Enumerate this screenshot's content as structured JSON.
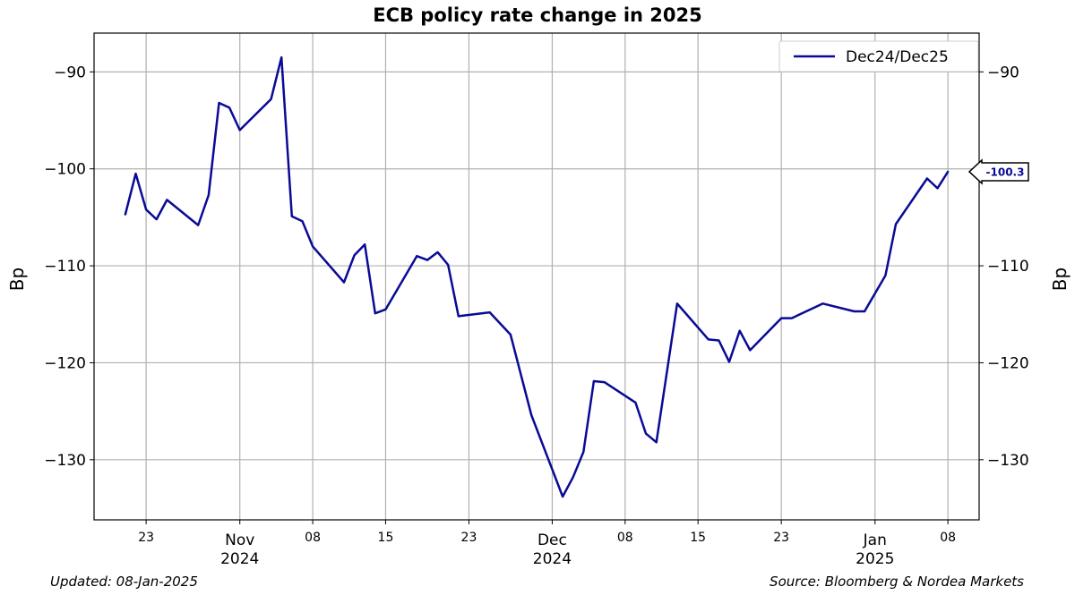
{
  "chart_data": {
    "type": "line",
    "title": "ECB policy rate change in 2025",
    "ylabel_left": "Bp",
    "ylabel_right": "Bp",
    "ylim": [
      -136.2,
      -86
    ],
    "y_ticks": [
      -90,
      -100,
      -110,
      -120,
      -130
    ],
    "y_tick_labels": [
      "−90",
      "−100",
      "−110",
      "−120",
      "−130"
    ],
    "xlim": [
      "2024-10-18",
      "2025-01-11"
    ],
    "x_ticks": [
      {
        "date": "2024-10-23",
        "label": "23",
        "sub": ""
      },
      {
        "date": "2024-11-01",
        "label": "Nov",
        "sub": "2024"
      },
      {
        "date": "2024-11-08",
        "label": "08",
        "sub": ""
      },
      {
        "date": "2024-11-15",
        "label": "15",
        "sub": ""
      },
      {
        "date": "2024-11-23",
        "label": "23",
        "sub": ""
      },
      {
        "date": "2024-12-01",
        "label": "Dec",
        "sub": "2024"
      },
      {
        "date": "2024-12-08",
        "label": "08",
        "sub": ""
      },
      {
        "date": "2024-12-15",
        "label": "15",
        "sub": ""
      },
      {
        "date": "2024-12-23",
        "label": "23",
        "sub": ""
      },
      {
        "date": "2025-01-01",
        "label": "Jan",
        "sub": "2025"
      },
      {
        "date": "2025-01-08",
        "label": "08",
        "sub": ""
      }
    ],
    "grid": true,
    "legend_position": "top-right",
    "series": [
      {
        "name": "Dec24/Dec25",
        "color": "#0a0a96",
        "points": [
          [
            "2024-10-21",
            -104.7
          ],
          [
            "2024-10-22",
            -100.5
          ],
          [
            "2024-10-23",
            -104.2
          ],
          [
            "2024-10-24",
            -105.2
          ],
          [
            "2024-10-25",
            -103.2
          ],
          [
            "2024-10-28",
            -105.8
          ],
          [
            "2024-10-29",
            -102.7
          ],
          [
            "2024-10-30",
            -93.2
          ],
          [
            "2024-10-31",
            -93.7
          ],
          [
            "2024-11-01",
            -96.0
          ],
          [
            "2024-11-04",
            -92.8
          ],
          [
            "2024-11-05",
            -88.5
          ],
          [
            "2024-11-06",
            -104.9
          ],
          [
            "2024-11-07",
            -105.4
          ],
          [
            "2024-11-08",
            -108.0
          ],
          [
            "2024-11-11",
            -111.7
          ],
          [
            "2024-11-12",
            -108.9
          ],
          [
            "2024-11-13",
            -107.8
          ],
          [
            "2024-11-14",
            -114.9
          ],
          [
            "2024-11-15",
            -114.5
          ],
          [
            "2024-11-18",
            -109.0
          ],
          [
            "2024-11-19",
            -109.4
          ],
          [
            "2024-11-20",
            -108.6
          ],
          [
            "2024-11-21",
            -109.9
          ],
          [
            "2024-11-22",
            -115.2
          ],
          [
            "2024-11-25",
            -114.8
          ],
          [
            "2024-11-27",
            -117.1
          ],
          [
            "2024-11-29",
            -125.4
          ],
          [
            "2024-12-02",
            -133.8
          ],
          [
            "2024-12-03",
            -131.8
          ],
          [
            "2024-12-04",
            -129.2
          ],
          [
            "2024-12-05",
            -121.9
          ],
          [
            "2024-12-06",
            -122.0
          ],
          [
            "2024-12-09",
            -124.1
          ],
          [
            "2024-12-10",
            -127.3
          ],
          [
            "2024-12-11",
            -128.2
          ],
          [
            "2024-12-13",
            -113.9
          ],
          [
            "2024-12-16",
            -117.6
          ],
          [
            "2024-12-17",
            -117.7
          ],
          [
            "2024-12-18",
            -119.9
          ],
          [
            "2024-12-19",
            -116.7
          ],
          [
            "2024-12-20",
            -118.7
          ],
          [
            "2024-12-23",
            -115.4
          ],
          [
            "2024-12-24",
            -115.4
          ],
          [
            "2024-12-27",
            -113.9
          ],
          [
            "2024-12-30",
            -114.7
          ],
          [
            "2024-12-31",
            -114.7
          ],
          [
            "2025-01-02",
            -111.0
          ],
          [
            "2025-01-03",
            -105.7
          ],
          [
            "2025-01-06",
            -101.0
          ],
          [
            "2025-01-07",
            -102.0
          ],
          [
            "2025-01-08",
            -100.3
          ]
        ]
      }
    ],
    "annotations": [
      {
        "type": "last-value-tag",
        "text": "-100.3",
        "value": -100.3
      }
    ]
  },
  "footer": {
    "updated": "Updated: 08-Jan-2025",
    "source": "Source: Bloomberg & Nordea Markets"
  }
}
